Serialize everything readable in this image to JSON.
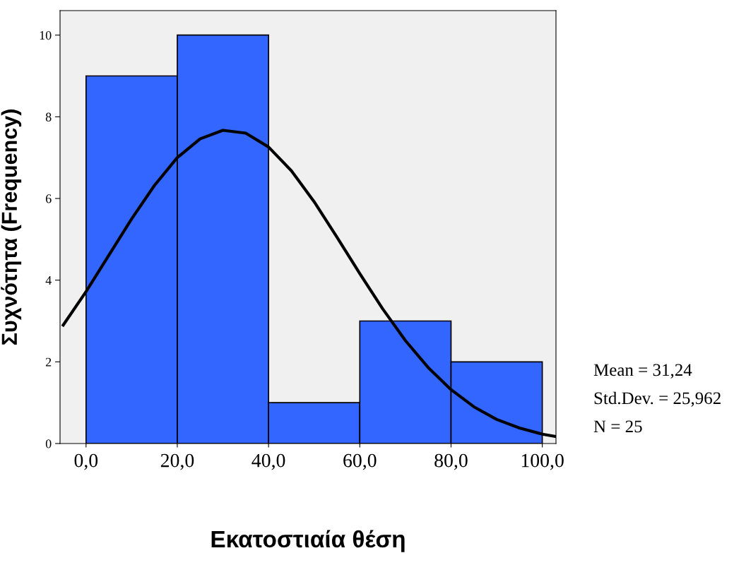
{
  "chart_data": {
    "type": "histogram",
    "xlabel": "Εκατοστιαία θέση",
    "ylabel": "Συχνότητα (Frequency)",
    "bins": [
      0,
      20,
      40,
      60,
      80,
      100
    ],
    "values": [
      9,
      10,
      1,
      3,
      2
    ],
    "color": "#3366ff",
    "series": [
      {
        "type": "line",
        "color": "#000000",
        "x": [
          -5,
          0,
          5,
          10,
          15,
          20,
          25,
          30,
          35,
          40,
          45,
          50,
          55,
          60,
          65,
          70,
          75,
          80,
          85,
          90,
          95,
          100,
          103
        ],
        "values": [
          2.9,
          3.72,
          4.61,
          5.5,
          6.32,
          7.0,
          7.46,
          7.67,
          7.6,
          7.26,
          6.68,
          5.92,
          5.05,
          4.16,
          3.3,
          2.52,
          1.86,
          1.32,
          0.9,
          0.59,
          0.38,
          0.23,
          0.17
        ]
      }
    ],
    "xlim": [
      -5.7,
      103
    ],
    "xticks": [
      {
        "value": 0,
        "label": "0,0"
      },
      {
        "value": 20,
        "label": "20,0"
      },
      {
        "value": 40,
        "label": "40,0"
      },
      {
        "value": 60,
        "label": "60,0"
      },
      {
        "value": 80,
        "label": "80,0"
      },
      {
        "value": 100,
        "label": "100,0"
      }
    ],
    "ylim": [
      0,
      10.6
    ],
    "yticks": [
      0,
      2,
      4,
      6,
      8,
      10
    ],
    "annotations": [
      "Mean = 31,24",
      "Std.Dev. = 25,962",
      "N = 25"
    ],
    "grid": false,
    "legend": false
  }
}
